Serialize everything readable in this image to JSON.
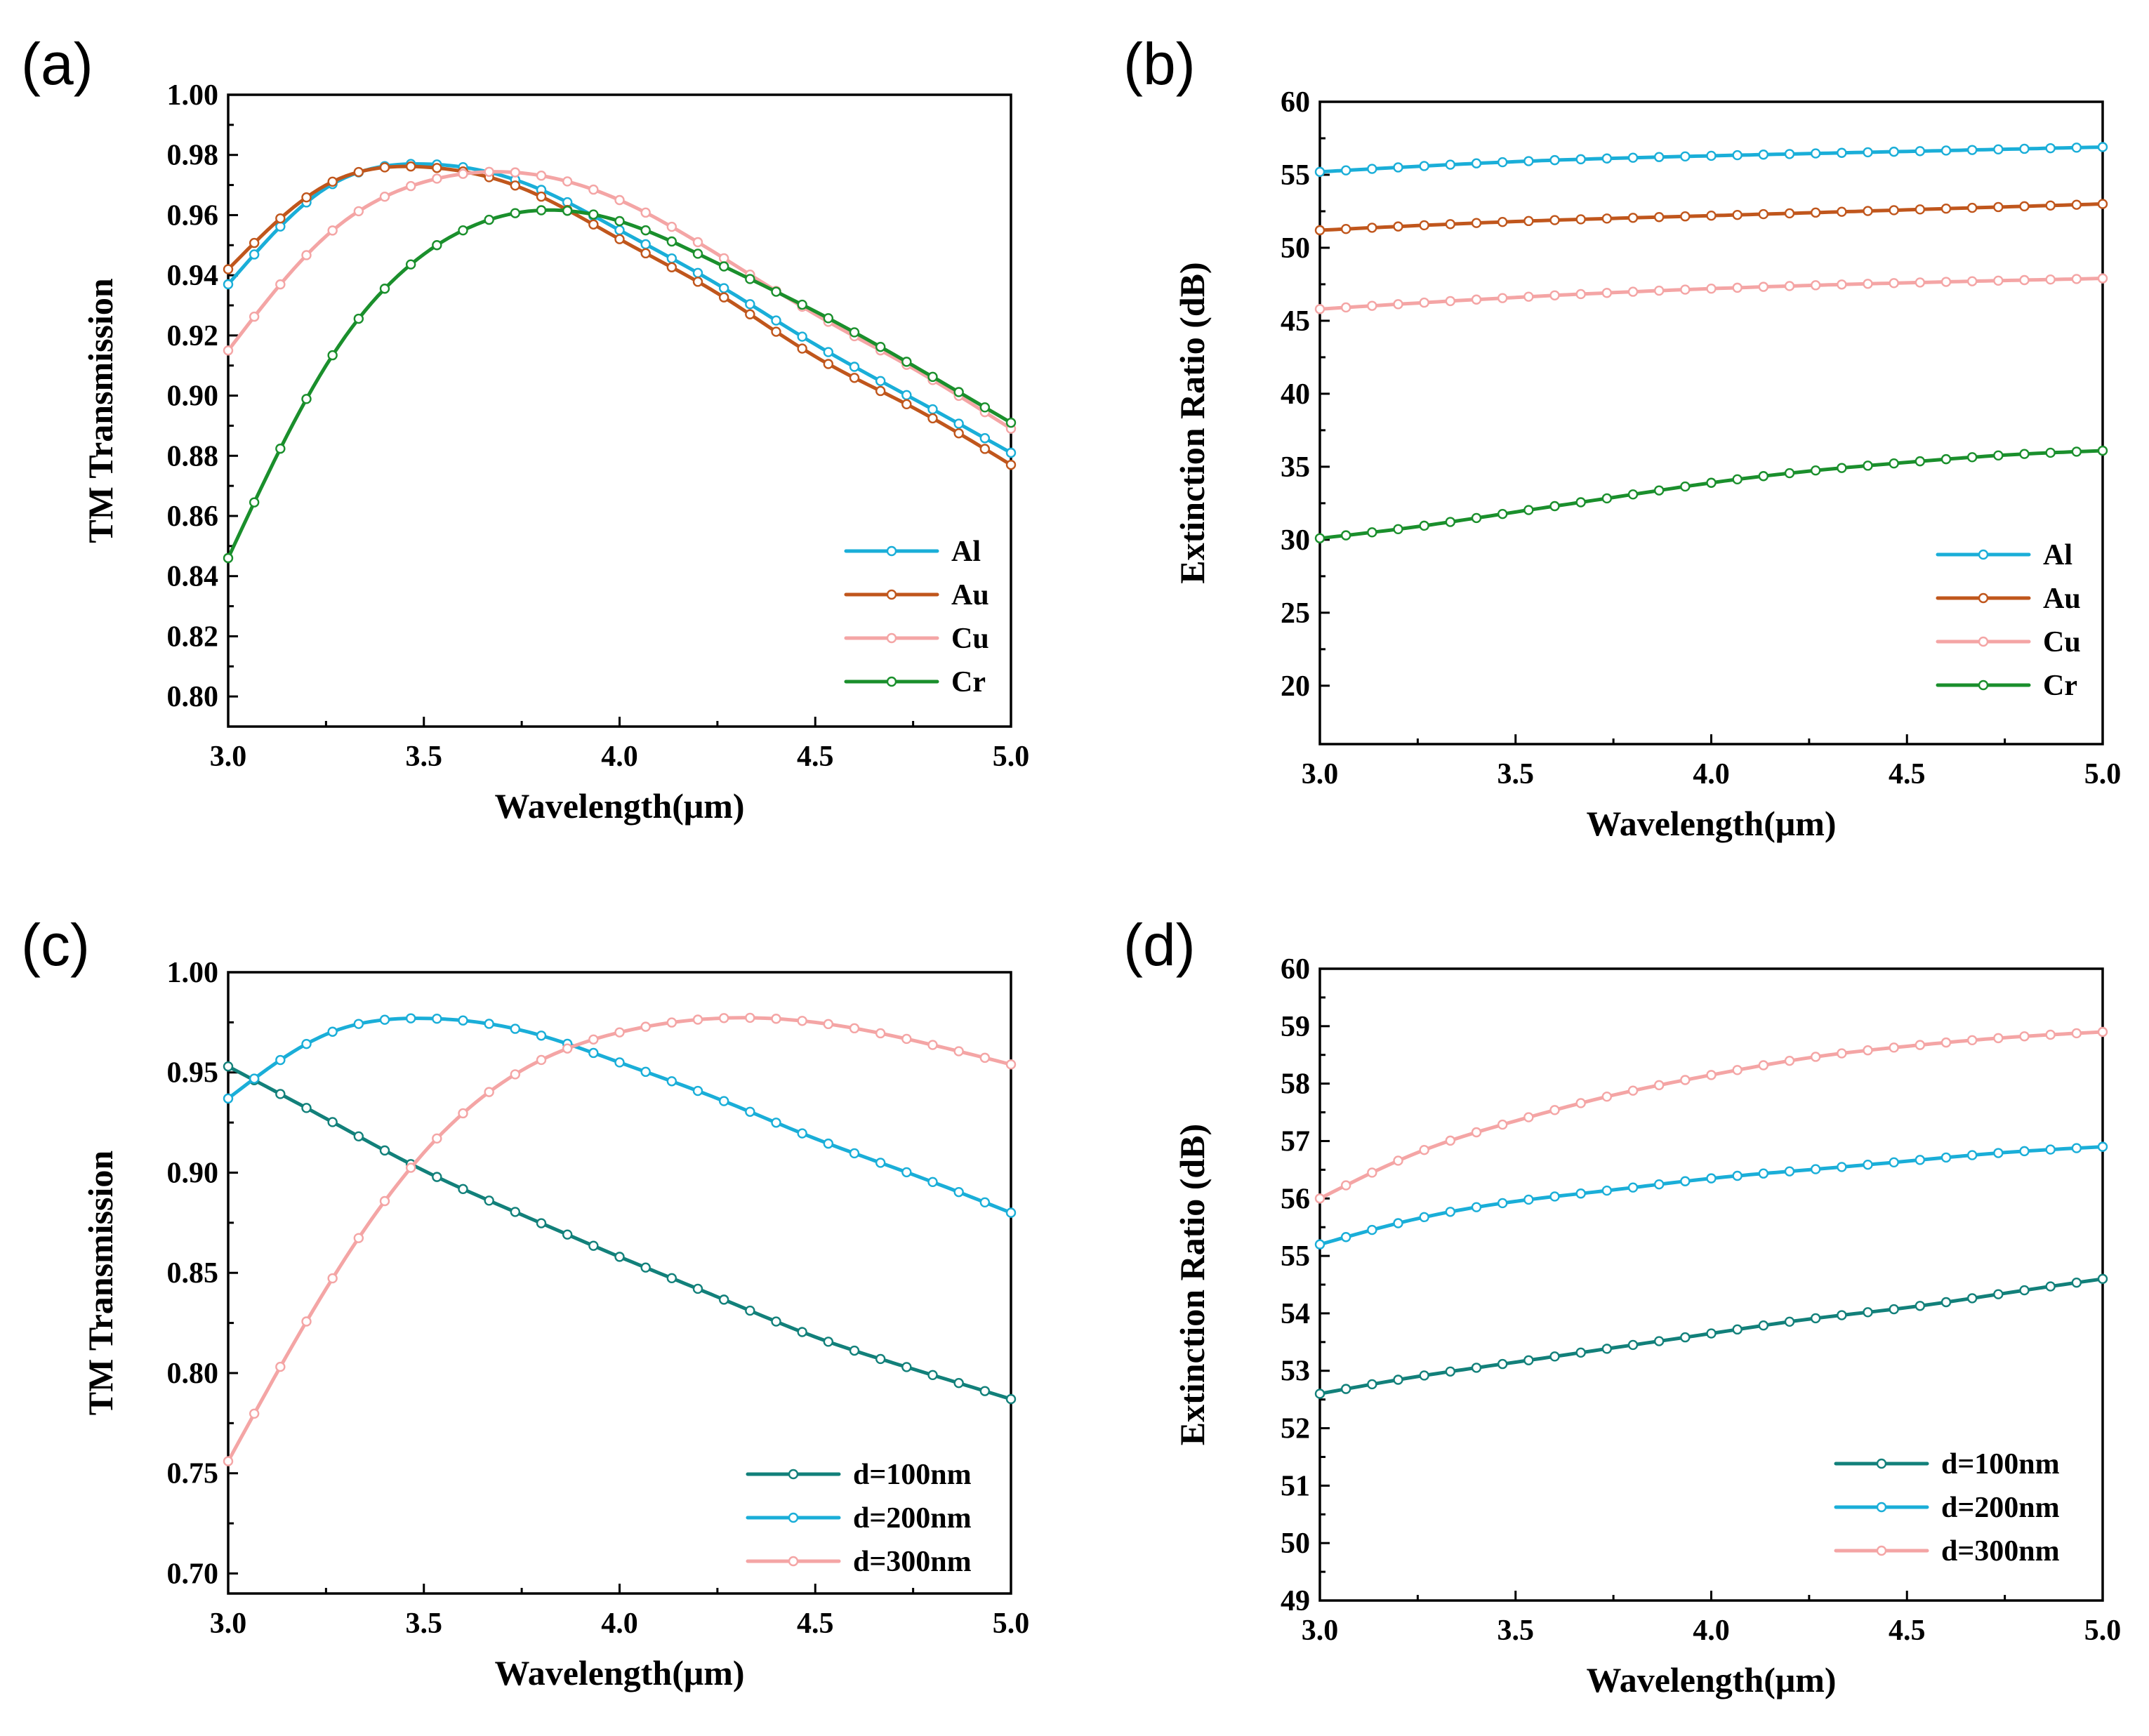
{
  "chart_data": [
    {
      "panel": "(a)",
      "type": "line",
      "xlabel": "Wavelength(μm)",
      "ylabel": "TM Transmission",
      "xlim": [
        3.0,
        5.0
      ],
      "ylim": [
        0.79,
        1.0
      ],
      "xticks": [
        "3.0",
        "3.5",
        "4.0",
        "4.5",
        "5.0"
      ],
      "yticks": [
        "0.80",
        "0.82",
        "0.84",
        "0.86",
        "0.88",
        "0.90",
        "0.92",
        "0.94",
        "0.96",
        "0.98",
        "1.00"
      ],
      "legend_position": "bottom-right",
      "grid": false,
      "series": [
        {
          "name": "Al",
          "color": "#1aaed8",
          "x": [
            3.0,
            3.25,
            3.5,
            3.75,
            4.0,
            4.25,
            4.5,
            4.75,
            5.0
          ],
          "y": [
            0.937,
            0.969,
            0.977,
            0.971,
            0.955,
            0.937,
            0.917,
            0.899,
            0.881
          ]
        },
        {
          "name": "Au",
          "color": "#c0561c",
          "x": [
            3.0,
            3.25,
            3.5,
            3.75,
            4.0,
            4.25,
            4.5,
            4.75,
            5.0
          ],
          "y": [
            0.942,
            0.97,
            0.976,
            0.969,
            0.952,
            0.934,
            0.913,
            0.896,
            0.877
          ]
        },
        {
          "name": "Cu",
          "color": "#f4a5a5",
          "x": [
            3.0,
            3.25,
            3.5,
            3.75,
            4.0,
            4.25,
            4.5,
            4.75,
            5.0
          ],
          "y": [
            0.915,
            0.953,
            0.971,
            0.974,
            0.965,
            0.947,
            0.927,
            0.909,
            0.889
          ]
        },
        {
          "name": "Cr",
          "color": "#1a8f2c",
          "x": [
            3.0,
            3.25,
            3.5,
            3.75,
            4.0,
            4.25,
            4.5,
            4.75,
            5.0
          ],
          "y": [
            0.846,
            0.91,
            0.947,
            0.961,
            0.958,
            0.944,
            0.928,
            0.91,
            0.891
          ]
        }
      ]
    },
    {
      "panel": "(b)",
      "type": "line",
      "xlabel": "Wavelength(μm)",
      "ylabel": "Extinction Ratio (dB)",
      "xlim": [
        3.0,
        5.0
      ],
      "ylim": [
        16,
        60
      ],
      "xticks": [
        "3.0",
        "3.5",
        "4.0",
        "4.5",
        "5.0"
      ],
      "yticks": [
        "20",
        "25",
        "30",
        "35",
        "40",
        "45",
        "50",
        "55",
        "60"
      ],
      "legend_position": "bottom-right",
      "grid": false,
      "series": [
        {
          "name": "Al",
          "color": "#1aaed8",
          "x": [
            3.0,
            3.5,
            4.0,
            4.5,
            5.0
          ],
          "y": [
            55.2,
            55.9,
            56.3,
            56.6,
            56.9
          ]
        },
        {
          "name": "Au",
          "color": "#c0561c",
          "x": [
            3.0,
            3.5,
            4.0,
            4.5,
            5.0
          ],
          "y": [
            51.2,
            51.8,
            52.2,
            52.6,
            53.0
          ]
        },
        {
          "name": "Cu",
          "color": "#f4a5a5",
          "x": [
            3.0,
            3.5,
            4.0,
            4.5,
            5.0
          ],
          "y": [
            45.8,
            46.6,
            47.2,
            47.6,
            47.9
          ]
        },
        {
          "name": "Cr",
          "color": "#1a8f2c",
          "x": [
            3.0,
            3.25,
            3.5,
            3.75,
            4.0,
            4.25,
            4.5,
            4.75,
            5.0
          ],
          "y": [
            30.1,
            30.9,
            31.9,
            32.9,
            33.9,
            34.7,
            35.3,
            35.8,
            36.1
          ]
        }
      ]
    },
    {
      "panel": "(c)",
      "type": "line",
      "xlabel": "Wavelength(μm)",
      "ylabel": "TM Transmission",
      "xlim": [
        3.0,
        5.0
      ],
      "ylim": [
        0.69,
        1.0
      ],
      "xticks": [
        "3.0",
        "3.5",
        "4.0",
        "4.5",
        "5.0"
      ],
      "yticks": [
        "0.70",
        "0.75",
        "0.80",
        "0.85",
        "0.90",
        "0.95",
        "1.00"
      ],
      "legend_position": "bottom-right",
      "grid": false,
      "series": [
        {
          "name": "d=100nm",
          "color": "#12807a",
          "x": [
            3.0,
            3.25,
            3.5,
            3.75,
            4.0,
            4.25,
            4.5,
            4.75,
            5.0
          ],
          "y": [
            0.953,
            0.927,
            0.901,
            0.879,
            0.858,
            0.838,
            0.818,
            0.802,
            0.787
          ]
        },
        {
          "name": "d=200nm",
          "color": "#1aaed8",
          "x": [
            3.0,
            3.25,
            3.5,
            3.75,
            4.0,
            4.25,
            4.5,
            4.75,
            5.0
          ],
          "y": [
            0.937,
            0.969,
            0.977,
            0.971,
            0.955,
            0.937,
            0.917,
            0.899,
            0.88
          ]
        },
        {
          "name": "d=300nm",
          "color": "#f4a5a5",
          "x": [
            3.0,
            3.25,
            3.5,
            3.75,
            4.0,
            4.25,
            4.5,
            4.75,
            5.0
          ],
          "y": [
            0.756,
            0.842,
            0.91,
            0.951,
            0.97,
            0.977,
            0.975,
            0.966,
            0.954
          ]
        }
      ]
    },
    {
      "panel": "(d)",
      "type": "line",
      "xlabel": "Wavelength(μm)",
      "ylabel": "Extinction Ratio (dB)",
      "xlim": [
        3.0,
        5.0
      ],
      "ylim": [
        49,
        60
      ],
      "xticks": [
        "3.0",
        "3.5",
        "4.0",
        "4.5",
        "5.0"
      ],
      "yticks": [
        "49",
        "50",
        "51",
        "52",
        "53",
        "54",
        "55",
        "56",
        "57",
        "58",
        "59",
        "60"
      ],
      "legend_position": "bottom-right",
      "grid": false,
      "series": [
        {
          "name": "d=100nm",
          "color": "#12807a",
          "x": [
            3.0,
            3.25,
            3.5,
            3.75,
            4.0,
            4.25,
            4.5,
            4.75,
            5.0
          ],
          "y": [
            52.6,
            52.9,
            53.15,
            53.4,
            53.65,
            53.9,
            54.1,
            54.35,
            54.6
          ]
        },
        {
          "name": "d=200nm",
          "color": "#1aaed8",
          "x": [
            3.0,
            3.25,
            3.5,
            3.75,
            4.0,
            4.25,
            4.5,
            4.75,
            5.0
          ],
          "y": [
            55.2,
            55.65,
            55.95,
            56.15,
            56.35,
            56.5,
            56.65,
            56.8,
            56.9
          ]
        },
        {
          "name": "d=300nm",
          "color": "#f4a5a5",
          "x": [
            3.0,
            3.25,
            3.5,
            3.75,
            4.0,
            4.25,
            4.5,
            4.75,
            5.0
          ],
          "y": [
            56.0,
            56.8,
            57.35,
            57.8,
            58.15,
            58.45,
            58.65,
            58.8,
            58.9
          ]
        }
      ]
    }
  ]
}
